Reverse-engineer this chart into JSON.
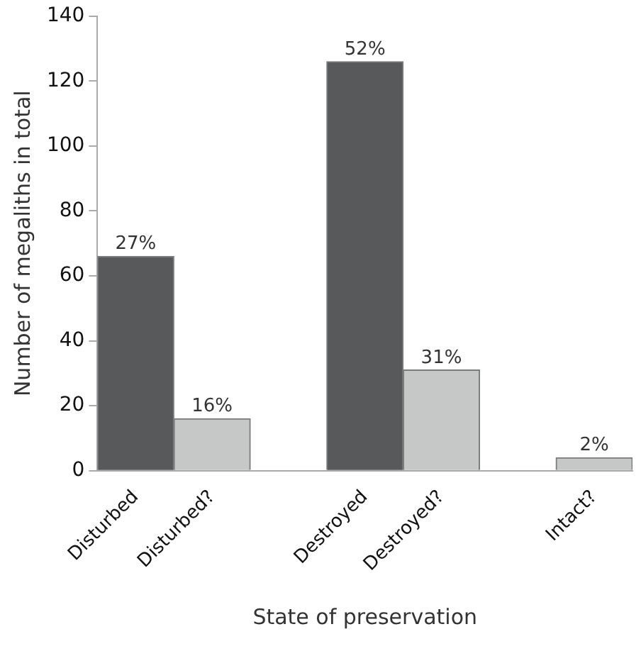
{
  "chart_data": {
    "type": "bar",
    "xlabel": "State of preservation",
    "ylabel": "Number of megaliths in total",
    "categories": [
      "Disturbed",
      "Disturbed?",
      null,
      "Destroyed",
      "Destroyed?",
      null,
      "Intact?"
    ],
    "values": [
      66,
      16,
      null,
      126,
      31,
      null,
      4
    ],
    "colors": [
      "#58595b",
      "#c6c8c8",
      null,
      "#58595b",
      "#c6c8c8",
      null,
      "#c6c8c8"
    ],
    "annotations": [
      {
        "text": "27%",
        "x": "Disturbed",
        "y": 66
      },
      {
        "text": "16%",
        "x": "Disturbed?",
        "y": 16
      },
      {
        "text": "52%",
        "x": "Destroyed",
        "y": 126
      },
      {
        "text": "31%",
        "x": "Destroyed?",
        "y": 31
      },
      {
        "text": "2%",
        "x": "Intact?",
        "y": 4
      }
    ],
    "ylim": [
      0,
      140
    ],
    "yticks": [
      0,
      20,
      40,
      60,
      80,
      100,
      120,
      140
    ],
    "grid": false,
    "legend": false
  }
}
